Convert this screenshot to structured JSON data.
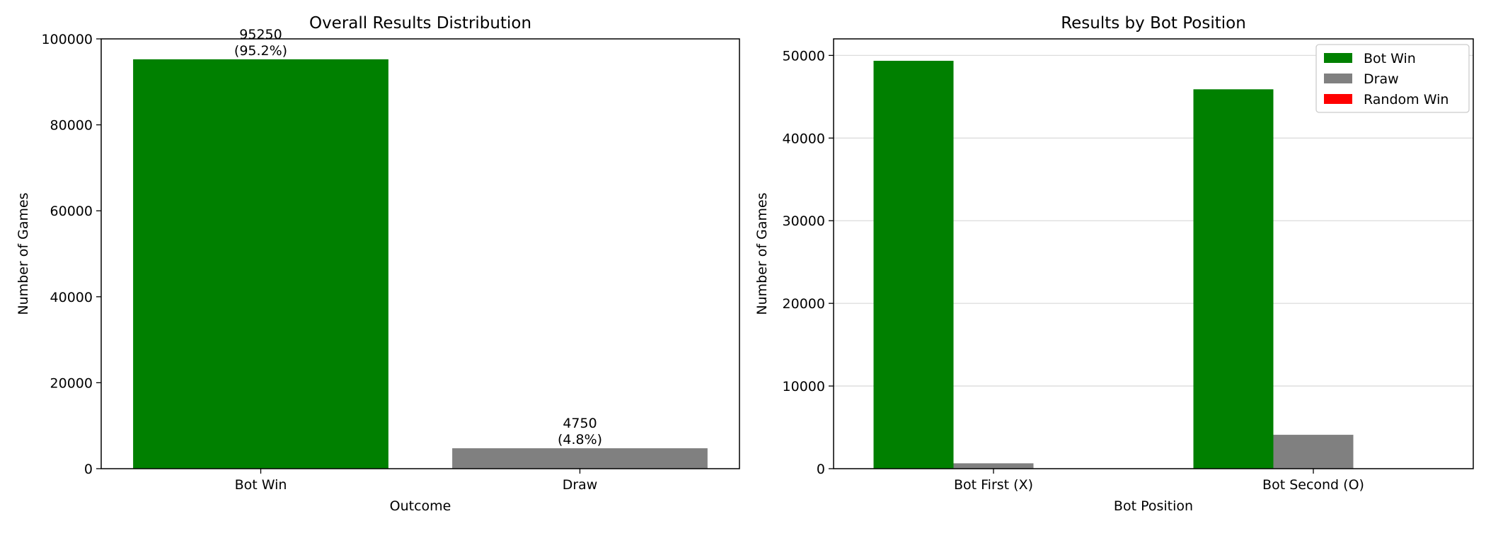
{
  "chart_data": [
    {
      "type": "bar",
      "title": "Overall Results Distribution",
      "xlabel": "Outcome",
      "ylabel": "Number of Games",
      "categories": [
        "Bot Win",
        "Draw"
      ],
      "values": [
        95250,
        4750
      ],
      "data_labels": [
        "95250\n(95.2%)",
        "4750\n(4.8%)"
      ],
      "colors": [
        "#008000",
        "#808080"
      ],
      "ylim": [
        0,
        100000
      ],
      "yticks": [
        0,
        20000,
        40000,
        60000,
        80000,
        100000
      ],
      "grid": false
    },
    {
      "type": "bar",
      "title": "Results by Bot Position",
      "xlabel": "Bot Position",
      "ylabel": "Number of Games",
      "categories": [
        "Bot First (X)",
        "Bot Second (O)"
      ],
      "series": [
        {
          "name": "Bot Win",
          "values": [
            49350,
            45900
          ],
          "color": "#008000"
        },
        {
          "name": "Draw",
          "values": [
            650,
            4100
          ],
          "color": "#808080"
        },
        {
          "name": "Random Win",
          "values": [
            0,
            0
          ],
          "color": "#ff0000"
        }
      ],
      "ylim": [
        0,
        52000
      ],
      "yticks": [
        0,
        10000,
        20000,
        30000,
        40000,
        50000
      ],
      "grid": true,
      "legend_position": "top-right"
    }
  ]
}
